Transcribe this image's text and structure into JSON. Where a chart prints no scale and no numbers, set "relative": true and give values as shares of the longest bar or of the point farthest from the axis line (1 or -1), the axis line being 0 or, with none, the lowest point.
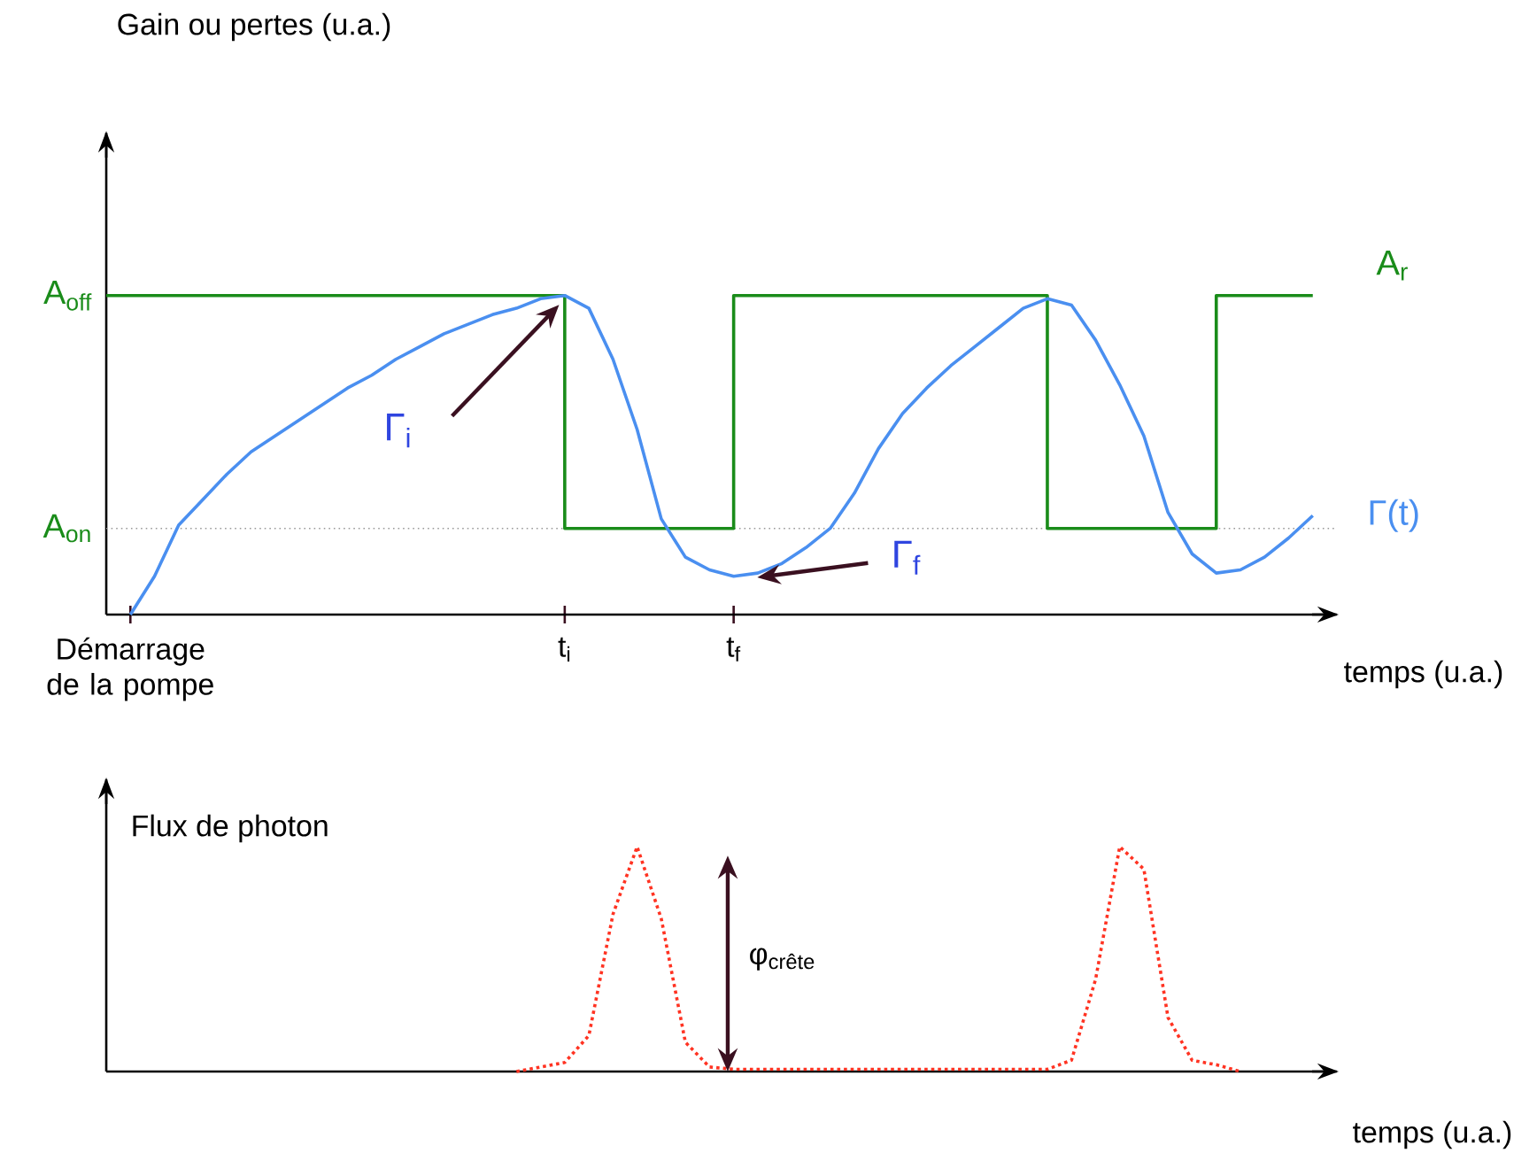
{
  "chart_data": [
    {
      "type": "line",
      "ylabel": "Gain ou pertes (u.a.)",
      "xlabel": "temps (u.a.)",
      "relative": true,
      "categories": [
        null,
        "Démarrage de la pompe",
        null,
        null,
        null,
        null,
        null,
        null,
        null,
        null,
        null,
        null,
        null,
        null,
        null,
        null,
        null,
        null,
        null,
        "t$_{i}$",
        null,
        null,
        null,
        null,
        null,
        null,
        "t$_{f}$",
        null,
        null,
        null,
        null,
        null,
        null,
        null,
        null,
        null,
        null,
        null,
        null,
        null,
        null,
        null,
        null,
        null,
        null,
        null,
        null,
        null,
        null,
        null,
        null,
        null
      ],
      "legend": false,
      "marker": "none",
      "ref_lines": [
        {
          "axis": "y",
          "value": 0.27,
          "color": "#999999",
          "line_style": "dotted"
        }
      ],
      "annotations": [
        "A$_{off}$",
        "A$_{on}$",
        "Γ$_{i}$",
        "Γ$_{f}$"
      ],
      "series": [
        {
          "name": "A$_{r}$",
          "type": "step",
          "color": "#1a8c1a",
          "values": [
            1,
            1,
            1,
            1,
            1,
            1,
            1,
            1,
            1,
            1,
            1,
            1,
            1,
            1,
            1,
            1,
            1,
            1,
            1,
            0.27,
            0.27,
            0.27,
            0.27,
            0.27,
            0.27,
            0.27,
            1,
            1,
            1,
            1,
            1,
            1,
            1,
            1,
            1,
            1,
            1,
            1,
            1,
            0.27,
            0.27,
            0.27,
            0.27,
            0.27,
            0.27,
            0.27,
            1,
            1,
            1,
            1,
            1,
            null
          ]
        },
        {
          "name": "Γ(t)",
          "color": "#4a8ff0",
          "values": [
            null,
            0,
            0.12,
            0.28,
            0.36,
            0.44,
            0.51,
            0.56,
            0.61,
            0.66,
            0.71,
            0.75,
            0.8,
            0.84,
            0.88,
            0.91,
            0.94,
            0.96,
            0.99,
            1,
            0.96,
            0.8,
            0.58,
            0.3,
            0.18,
            0.14,
            0.12,
            0.13,
            0.16,
            0.21,
            0.27,
            0.38,
            0.52,
            0.63,
            0.71,
            0.78,
            0.84,
            0.9,
            0.96,
            0.99,
            0.97,
            0.86,
            0.72,
            0.56,
            0.32,
            0.19,
            0.13,
            0.14,
            0.18,
            0.24,
            0.31,
            null
          ]
        }
      ]
    },
    {
      "type": "line",
      "ylabel": "Flux de photon",
      "xlabel": "temps (u.a.)",
      "relative": true,
      "categories": [
        null,
        null,
        null,
        null,
        null,
        null,
        null,
        null,
        null,
        null,
        null,
        null,
        null,
        null,
        null,
        null,
        null,
        null,
        null,
        null,
        null,
        null,
        null,
        null,
        null,
        null,
        null,
        null,
        null,
        null,
        null,
        null,
        null,
        null,
        null,
        null,
        null,
        null,
        null,
        null,
        null,
        null,
        null,
        null,
        null,
        null,
        null,
        null,
        null,
        null,
        null,
        null
      ],
      "legend": false,
      "marker": "none",
      "line_style": "dotted",
      "annotations": [
        "φ$_{crête}$"
      ],
      "series": [
        {
          "color": "#ff3322",
          "values": [
            null,
            null,
            null,
            null,
            null,
            null,
            null,
            null,
            null,
            null,
            null,
            null,
            null,
            null,
            null,
            null,
            null,
            0,
            0.02,
            0.04,
            0.16,
            0.7,
            1,
            0.68,
            0.13,
            0.02,
            0.01,
            0.01,
            0.01,
            0.01,
            0.01,
            0.01,
            0.01,
            0.01,
            0.01,
            0.01,
            0.01,
            0.01,
            0.01,
            0.01,
            0.05,
            0.41,
            1,
            0.9,
            0.24,
            0.05,
            0.03,
            0,
            null,
            null,
            null,
            null
          ]
        }
      ]
    }
  ]
}
